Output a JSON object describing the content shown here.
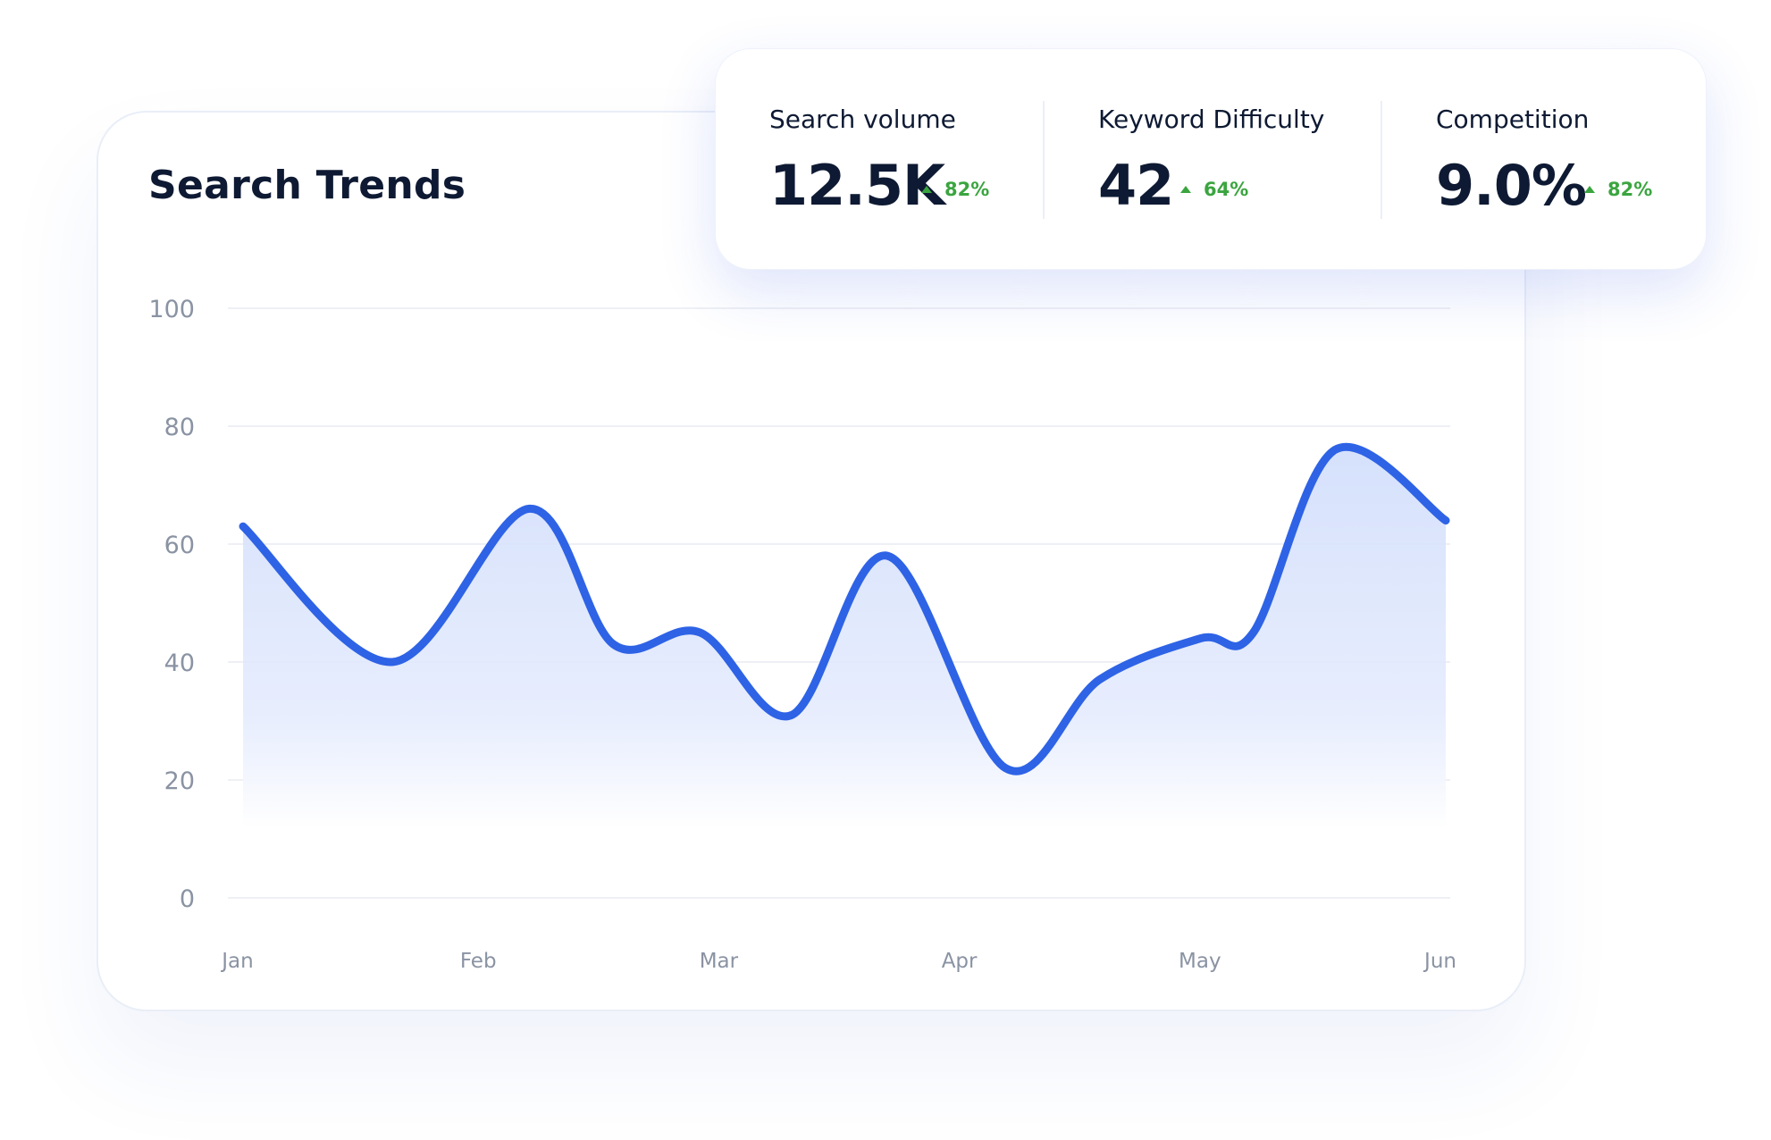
{
  "card": {
    "title": "Search Trends"
  },
  "metrics": [
    {
      "label": "Search volume",
      "value": "12.5K",
      "change": "82%"
    },
    {
      "label": "Keyword Difficulty",
      "value": "42",
      "change": "64%"
    },
    {
      "label": "Competition",
      "value": "9.0%",
      "change": "82%"
    }
  ],
  "colors": {
    "line": "#2e63e6",
    "area": "#dbe5fc",
    "positive": "#3aa53f",
    "text": "#0e1a33",
    "axis_text": "#8a93a3",
    "grid": "#e9ecf2"
  },
  "chart_data": {
    "type": "area",
    "title": "Search Trends",
    "xlabel": "",
    "ylabel": "",
    "ylim": [
      0,
      100
    ],
    "yticks": [
      0,
      20,
      40,
      60,
      80,
      100
    ],
    "categories": [
      "Jan",
      "Feb",
      "Mar",
      "Apr",
      "May",
      "Jun"
    ],
    "grid": true,
    "series": [
      {
        "x": [
          0,
          0.62,
          1.19,
          1.54,
          1.9,
          2.28,
          2.68,
          3.17,
          3.56,
          3.98,
          4.2,
          4.54,
          5.0
        ],
        "values": [
          63,
          40,
          66,
          43,
          45,
          31,
          58,
          22,
          37,
          44,
          45,
          76,
          64
        ]
      }
    ]
  }
}
